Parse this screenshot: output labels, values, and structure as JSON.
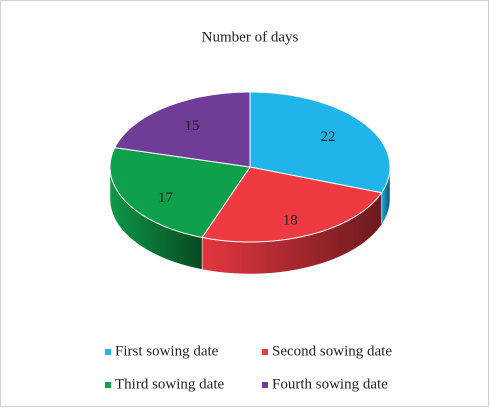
{
  "chart_data": {
    "type": "pie3d",
    "title": "Number of days",
    "categories": [
      "First sowing date",
      "Second sowing date",
      "Third sowing date",
      "Fourth sowing date"
    ],
    "values": [
      22,
      18,
      17,
      15
    ],
    "colors": [
      "#1fb4ea",
      "#ef3a42",
      "#0fa04b",
      "#6f3d97"
    ],
    "legend": "bottom"
  }
}
